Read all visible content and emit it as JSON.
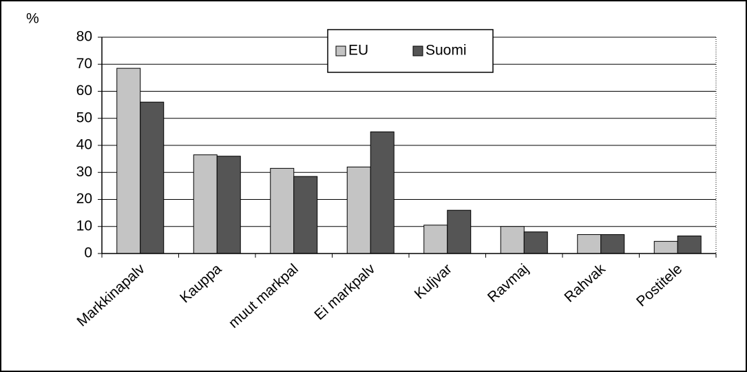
{
  "chart_data": {
    "type": "bar",
    "ylabel": "%",
    "categories": [
      "Markkinapalv",
      "Kauppa",
      "muut markpal",
      "Ei markpalv",
      "Kuljvar",
      "Ravmaj",
      "Rahvak",
      "Postitele"
    ],
    "series": [
      {
        "name": "EU",
        "color": "#c4c4c4",
        "values": [
          68.5,
          36.5,
          31.5,
          32,
          10.5,
          10,
          7,
          4.5
        ]
      },
      {
        "name": "Suomi",
        "color": "#555555",
        "values": [
          56,
          36,
          28.5,
          45,
          16,
          8,
          7,
          6.5
        ]
      }
    ],
    "ylim": [
      0,
      80
    ],
    "yticks": [
      0,
      10,
      20,
      30,
      40,
      50,
      60,
      70,
      80
    ],
    "grid": true,
    "legend": "upper center"
  }
}
